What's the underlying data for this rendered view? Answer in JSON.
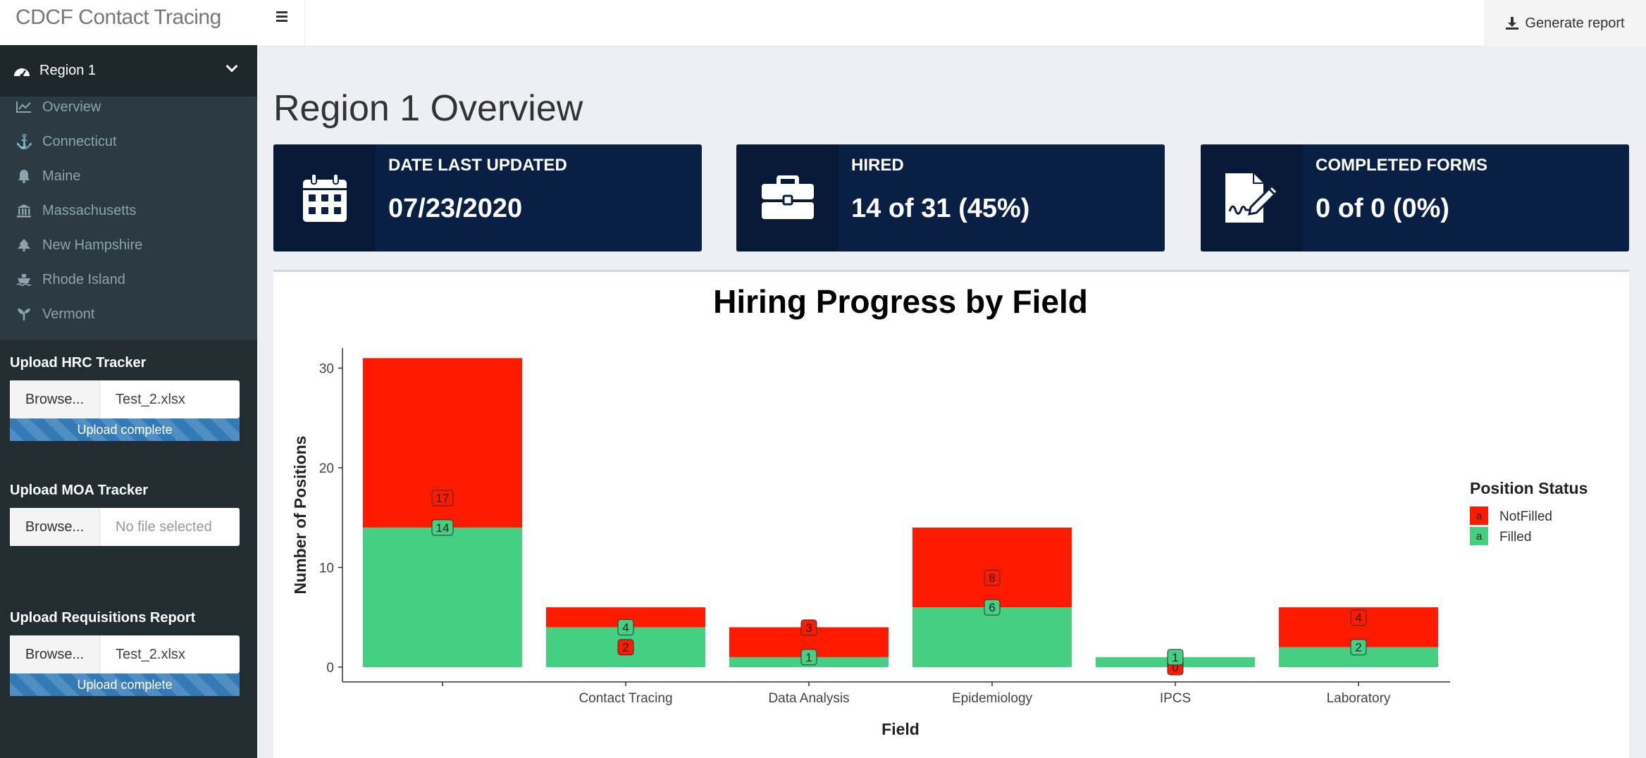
{
  "app": {
    "title": "CDCF Contact Tracing"
  },
  "header": {
    "generate_report": "Generate report"
  },
  "sidebar": {
    "region": "Region 1",
    "items": [
      {
        "label": "Overview",
        "icon": "line-chart-icon"
      },
      {
        "label": "Connecticut",
        "icon": "anchor-icon"
      },
      {
        "label": "Maine",
        "icon": "bell-icon"
      },
      {
        "label": "Massachusetts",
        "icon": "bank-icon"
      },
      {
        "label": "New Hampshire",
        "icon": "tree-icon"
      },
      {
        "label": "Rhode Island",
        "icon": "ship-icon"
      },
      {
        "label": "Vermont",
        "icon": "seedling-icon"
      }
    ],
    "uploads": [
      {
        "label": "Upload HRC Tracker",
        "browse": "Browse...",
        "file": "Test_2.xlsx",
        "status": "Upload complete"
      },
      {
        "label": "Upload MOA Tracker",
        "browse": "Browse...",
        "file": "No file selected",
        "status": ""
      },
      {
        "label": "Upload Requisitions Report",
        "browse": "Browse...",
        "file": "Test_2.xlsx",
        "status": "Upload complete"
      }
    ]
  },
  "main": {
    "title": "Region 1 Overview",
    "value_boxes": [
      {
        "label": "DATE LAST UPDATED",
        "value": "07/23/2020",
        "icon": "calendar-icon"
      },
      {
        "label": "HIRED",
        "value": "14 of 31 (45%)",
        "icon": "briefcase-icon"
      },
      {
        "label": "COMPLETED FORMS",
        "value": "0 of 0 (0%)",
        "icon": "signature-icon"
      }
    ]
  },
  "colors": {
    "notfilled": "#ff1a00",
    "filled": "#45cf82",
    "valuebox": "#0a1f44",
    "sidebar": "#222d32"
  },
  "chart_data": {
    "type": "bar",
    "stacked": true,
    "title": "Hiring Progress by Field",
    "xlabel": "Field",
    "ylabel": "Number of Positions",
    "categories": [
      "",
      "Contact Tracing",
      "Data Analysis",
      "Epidemiology",
      "IPCS",
      "Laboratory"
    ],
    "series": [
      {
        "name": "Filled",
        "values": [
          14,
          4,
          1,
          6,
          1,
          2
        ]
      },
      {
        "name": "NotFilled",
        "values": [
          17,
          2,
          3,
          8,
          0,
          4
        ]
      }
    ],
    "ylim": [
      0,
      32
    ],
    "yticks": [
      0,
      10,
      20,
      30
    ],
    "legend": {
      "title": "Position Status",
      "position": "right",
      "entries": [
        "NotFilled",
        "Filled"
      ],
      "key_glyph": "a"
    }
  }
}
